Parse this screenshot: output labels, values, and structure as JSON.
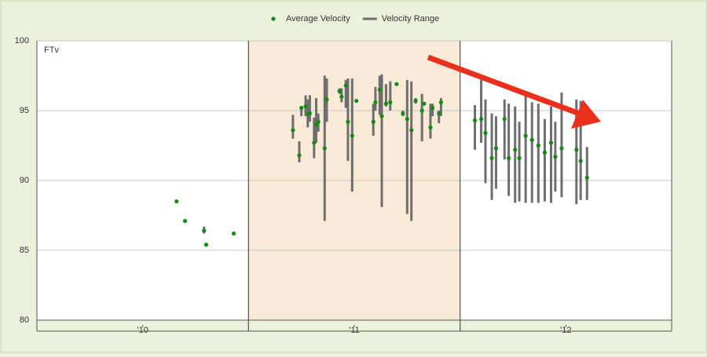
{
  "chart_data": {
    "type": "scatter",
    "axis_label": "FTv",
    "x": [
      0.66,
      0.7,
      0.79,
      0.8,
      0.93,
      1.21,
      1.24,
      1.25,
      1.27,
      1.28,
      1.29,
      1.31,
      1.32,
      1.33,
      1.36,
      1.37,
      1.43,
      1.44,
      1.46,
      1.47,
      1.49,
      1.51,
      1.59,
      1.6,
      1.62,
      1.63,
      1.65,
      1.67,
      1.7,
      1.73,
      1.75,
      1.77,
      1.79,
      1.82,
      1.83,
      1.86,
      1.87,
      1.9,
      1.91,
      2.07,
      2.1,
      2.12,
      2.15,
      2.17,
      2.21,
      2.23,
      2.26,
      2.28,
      2.31,
      2.34,
      2.37,
      2.4,
      2.43,
      2.45,
      2.48,
      2.55,
      2.57,
      2.6
    ],
    "series": [
      {
        "name": "Average Velocity",
        "color": "#138a13",
        "values": [
          88.5,
          87.1,
          86.4,
          85.4,
          86.2,
          93.6,
          91.8,
          95.2,
          95.3,
          94.8,
          94.8,
          92.7,
          94.0,
          94.2,
          92.3,
          95.8,
          96.4,
          96.0,
          96.8,
          94.2,
          93.2,
          95.7,
          94.2,
          95.6,
          96.5,
          94.6,
          95.5,
          95.6,
          96.9,
          94.8,
          94.4,
          93.6,
          95.7,
          95.0,
          95.5,
          93.8,
          95.2,
          94.8,
          95.6,
          94.3,
          94.4,
          93.4,
          91.6,
          92.3,
          94.4,
          91.6,
          92.2,
          91.6,
          93.2,
          92.9,
          92.5,
          92.0,
          92.7,
          91.7,
          92.3,
          92.2,
          91.4,
          90.2
        ]
      },
      {
        "name": "Velocity Range",
        "color": "#6e6e6e",
        "low": [
          null,
          null,
          86.2,
          null,
          null,
          93.0,
          91.3,
          94.6,
          94.6,
          93.8,
          94.2,
          91.6,
          92.7,
          93.5,
          87.1,
          94.2,
          96.2,
          95.6,
          95.2,
          91.4,
          89.2,
          null,
          93.2,
          95.0,
          94.7,
          88.1,
          95.3,
          95.0,
          null,
          94.6,
          87.6,
          87.1,
          95.5,
          92.8,
          null,
          93.0,
          94.6,
          94.1,
          94.6,
          92.2,
          92.7,
          89.8,
          88.6,
          89.4,
          91.5,
          88.9,
          88.4,
          88.5,
          88.4,
          88.4,
          88.4,
          88.5,
          88.4,
          89.2,
          88.8,
          88.3,
          88.6,
          88.6
        ],
        "high": [
          null,
          null,
          86.7,
          null,
          null,
          94.7,
          92.8,
          95.3,
          96.1,
          95.8,
          96.1,
          94.5,
          95.9,
          94.8,
          97.5,
          97.3,
          96.6,
          96.6,
          97.2,
          97.3,
          97.3,
          null,
          95.5,
          96.7,
          97.5,
          97.6,
          96.9,
          97.1,
          null,
          95.0,
          97.2,
          97.1,
          95.9,
          96.2,
          null,
          95.5,
          95.5,
          95.0,
          95.9,
          95.4,
          97.2,
          95.8,
          94.8,
          94.6,
          95.8,
          95.5,
          95.3,
          94.2,
          96.4,
          95.6,
          95.5,
          94.4,
          95.3,
          94.2,
          96.3,
          95.8,
          95.7,
          92.4
        ]
      }
    ],
    "xlim": [
      0,
      3
    ],
    "xticks": [
      {
        "value": 0.5,
        "label": "'10"
      },
      {
        "value": 1.5,
        "label": "'11"
      },
      {
        "value": 2.5,
        "label": "'12"
      }
    ],
    "shaded_band": 1,
    "ylim": [
      80,
      100
    ],
    "yticks": [
      80,
      85,
      90,
      95,
      100
    ],
    "grid": true
  }
}
